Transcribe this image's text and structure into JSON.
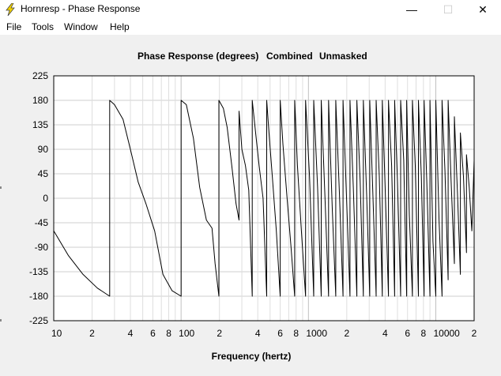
{
  "window": {
    "title": "Hornresp - Phase Response",
    "icon": "lightning-bolt-icon",
    "controls": {
      "minimize": "—",
      "maximize": "☐",
      "close": "✕"
    }
  },
  "menu": {
    "items": [
      {
        "label": "File"
      },
      {
        "label": "Tools"
      },
      {
        "label": "Window"
      },
      {
        "label": "Help"
      }
    ]
  },
  "chart_data": {
    "type": "line",
    "title_parts": [
      "Phase Response (degrees)",
      "Combined",
      "Unmasked"
    ],
    "xlabel": "Frequency (hertz)",
    "ylabel": "",
    "x_scale": "log",
    "xlim": [
      10,
      20000
    ],
    "ylim": [
      -225,
      225
    ],
    "y_ticks": [
      225,
      180,
      135,
      90,
      45,
      0,
      -45,
      -90,
      -135,
      -180,
      -225
    ],
    "y_tick_labels": [
      "225",
      "180",
      "135",
      "90",
      "45",
      "0",
      "-45",
      "-90",
      "-135",
      "-180",
      "-225"
    ],
    "x_tick_labels": [
      {
        "value": 10,
        "label": "10"
      },
      {
        "value": 20,
        "label": "2"
      },
      {
        "value": 40,
        "label": "4"
      },
      {
        "value": 60,
        "label": "6"
      },
      {
        "value": 80,
        "label": "8"
      },
      {
        "value": 100,
        "label": "100"
      },
      {
        "value": 200,
        "label": "2"
      },
      {
        "value": 400,
        "label": "4"
      },
      {
        "value": 600,
        "label": "6"
      },
      {
        "value": 800,
        "label": "8"
      },
      {
        "value": 1000,
        "label": "1000"
      },
      {
        "value": 2000,
        "label": "2"
      },
      {
        "value": 4000,
        "label": "4"
      },
      {
        "value": 6000,
        "label": "6"
      },
      {
        "value": 8000,
        "label": "8"
      },
      {
        "value": 10000,
        "label": "10000"
      },
      {
        "value": 20000,
        "label": "2"
      }
    ],
    "series": [
      {
        "name": "Combined phase",
        "color": "#000000",
        "x": [
          10,
          13,
          17,
          22,
          27.5,
          27.5,
          30,
          35,
          40,
          46,
          53,
          62,
          72,
          85,
          100,
          100,
          110,
          125,
          140,
          158,
          175,
          185,
          198,
          198,
          215,
          230,
          250,
          270,
          285,
          285,
          300,
          320,
          340,
          362,
          362,
          385,
          410,
          440,
          470,
          470,
          490,
          520,
          560,
          600,
          600,
          630,
          680,
          730,
          780,
          780,
          820,
          880,
          950,
          950,
          1020,
          1100,
          1100,
          1180,
          1260,
          1260,
          1350,
          1440,
          1440,
          1540,
          1640,
          1640,
          1750,
          1870,
          1870,
          2000,
          2120,
          2120,
          2250,
          2400,
          2400,
          2550,
          2700,
          2700,
          2860,
          3030,
          3030,
          3200,
          3400,
          3400,
          3600,
          3800,
          3800,
          4000,
          4250,
          4250,
          4500,
          4750,
          4750,
          5000,
          5300,
          5300,
          5600,
          5900,
          5900,
          6200,
          6550,
          6550,
          6900,
          7300,
          7300,
          7700,
          8100,
          8100,
          8500,
          9000,
          9000,
          9500,
          10000,
          10000,
          10600,
          11200,
          11200,
          11800,
          12500,
          12500,
          13200,
          14000,
          14000,
          14800,
          15600,
          15600,
          16500,
          17400,
          17400,
          18300,
          19200,
          20000
        ],
        "y": [
          -60,
          -105,
          -140,
          -165,
          -180,
          180,
          172,
          145,
          90,
          30,
          -10,
          -60,
          -140,
          -170,
          -180,
          180,
          172,
          110,
          20,
          -40,
          -55,
          -120,
          -180,
          180,
          165,
          130,
          60,
          -10,
          -40,
          160,
          90,
          60,
          15,
          -180,
          180,
          120,
          60,
          0,
          -180,
          180,
          120,
          40,
          -60,
          -180,
          180,
          100,
          0,
          -90,
          -180,
          180,
          60,
          -60,
          -180,
          180,
          40,
          -180,
          180,
          20,
          -180,
          180,
          0,
          -180,
          180,
          -20,
          -180,
          180,
          10,
          -180,
          180,
          -10,
          -180,
          180,
          20,
          -180,
          180,
          30,
          -180,
          180,
          10,
          -180,
          180,
          15,
          -180,
          180,
          40,
          -180,
          180,
          20,
          -180,
          180,
          60,
          -180,
          180,
          30,
          -180,
          180,
          70,
          -180,
          180,
          -30,
          -180,
          180,
          60,
          -180,
          180,
          40,
          -180,
          180,
          30,
          -180,
          180,
          -80,
          -180,
          180,
          -40,
          -180,
          180,
          50,
          -150,
          180,
          30,
          -120,
          150,
          10,
          -140,
          120,
          40,
          -100,
          80,
          20,
          -60,
          70
        ]
      }
    ]
  }
}
